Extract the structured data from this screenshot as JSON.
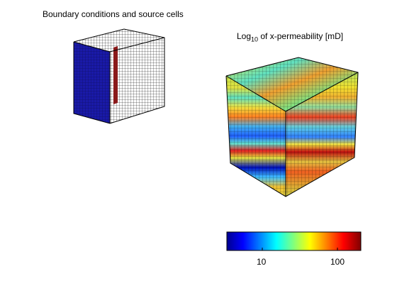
{
  "left_panel": {
    "title": "Boundary conditions and source cells",
    "colors": {
      "boundary_face": "#1a1aa8",
      "grid_line": "#000000",
      "source_cells": "#8b1a1a"
    }
  },
  "right_panel": {
    "title_prefix": "Log",
    "title_subscript": "10",
    "title_suffix": " of x-permeability [mD]",
    "colormap": "jet"
  },
  "colorbar": {
    "ticks": [
      "10",
      "100"
    ],
    "colors": [
      "#00008f",
      "#0000ff",
      "#00ffff",
      "#ffff00",
      "#ff0000",
      "#800000"
    ]
  }
}
